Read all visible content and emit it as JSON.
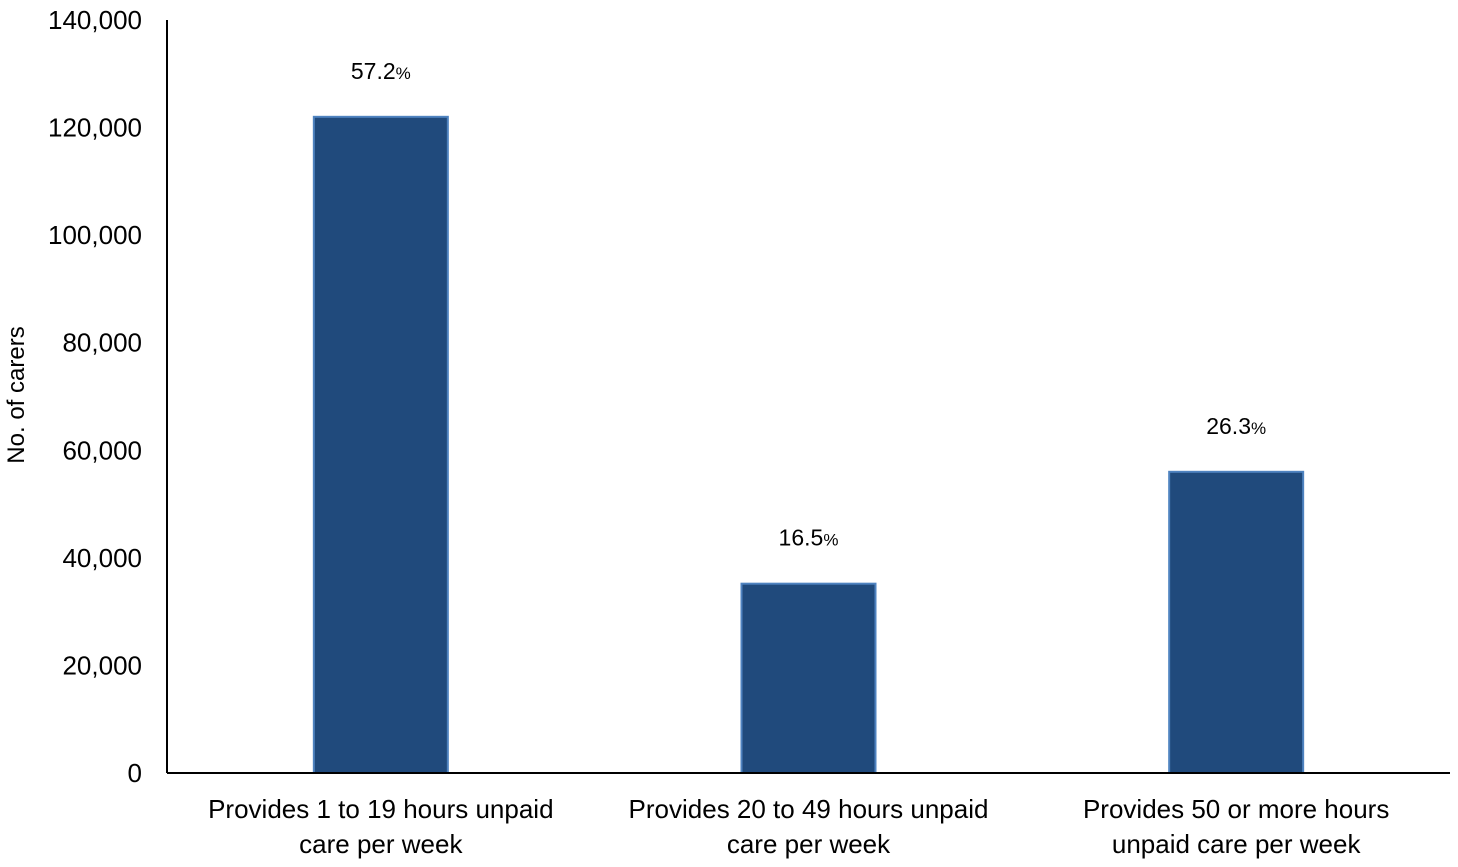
{
  "chart_data": {
    "type": "bar",
    "title": "",
    "xlabel": "",
    "ylabel": "No. of carers",
    "categories": [
      [
        "Provides 1 to 19 hours unpaid",
        "care per week"
      ],
      [
        "Provides 20 to 49 hours unpaid",
        "care per week"
      ],
      [
        "Provides 50 or more hours",
        "unpaid care per week"
      ]
    ],
    "values": [
      122000,
      35200,
      56000
    ],
    "data_labels": [
      {
        "number": "57.2",
        "unit": "%"
      },
      {
        "number": "16.5",
        "unit": "%"
      },
      {
        "number": "26.3",
        "unit": "%"
      }
    ],
    "ylim": [
      0,
      140000
    ],
    "yticks": [
      0,
      20000,
      40000,
      60000,
      80000,
      100000,
      120000,
      140000
    ],
    "ytick_labels": [
      "0",
      "20,000",
      "40,000",
      "60,000",
      "80,000",
      "100,000",
      "120,000",
      "140,000"
    ],
    "grid": false,
    "legend": "none",
    "colors": {
      "bar_fill": "#204a7c",
      "bar_stroke": "#4f83c0",
      "axis": "#000000"
    }
  }
}
